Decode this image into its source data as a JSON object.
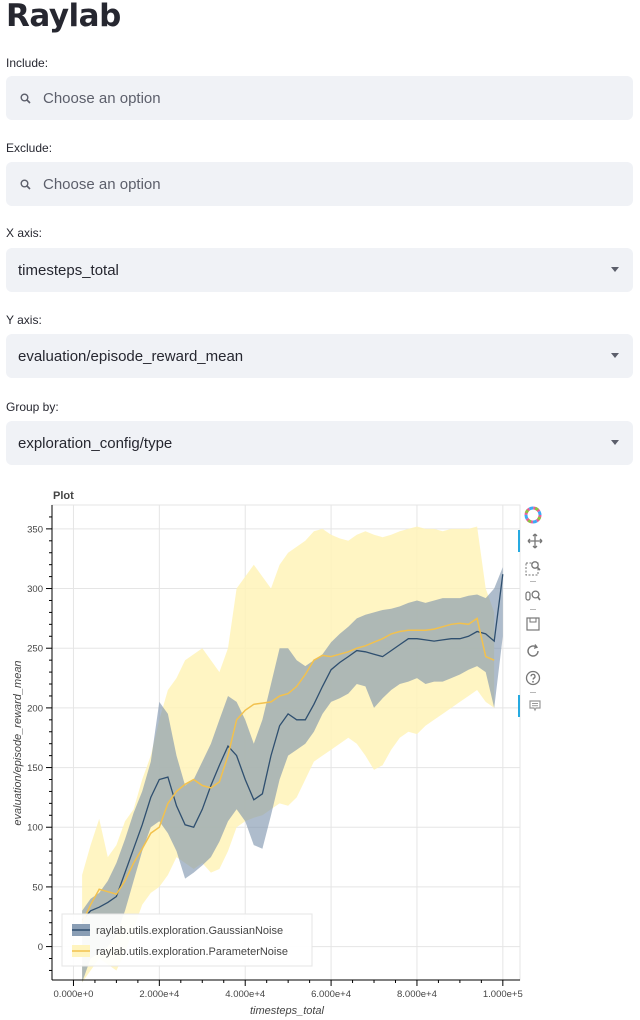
{
  "app": {
    "title": "Raylab"
  },
  "controls": {
    "include": {
      "label": "Include:",
      "placeholder": "Choose an option"
    },
    "exclude": {
      "label": "Exclude:",
      "placeholder": "Choose an option"
    },
    "x_axis": {
      "label": "X axis:",
      "value": "timesteps_total"
    },
    "y_axis": {
      "label": "Y axis:",
      "value": "evaluation/episode_reward_mean"
    },
    "group_by": {
      "label": "Group by:",
      "value": "exploration_config/type"
    }
  },
  "toolbar": {
    "tools": [
      "bokeh-logo-icon",
      "pan-icon",
      "box-zoom-icon",
      "wheel-zoom-icon",
      "save-icon",
      "reset-icon",
      "help-icon",
      "hover-icon"
    ]
  },
  "chart_data": {
    "type": "line",
    "title": "Plot",
    "xlabel": "timesteps_total",
    "ylabel": "evaluation/episode_reward_mean",
    "xlim": [
      -5000,
      104000
    ],
    "ylim": [
      -28,
      370
    ],
    "x_ticks": [
      0,
      20000,
      40000,
      60000,
      80000,
      100000
    ],
    "x_tick_labels": [
      "0.000e+0",
      "2.000e+4",
      "4.000e+4",
      "6.000e+4",
      "8.000e+4",
      "1.000e+5"
    ],
    "y_ticks": [
      0,
      50,
      100,
      150,
      200,
      250,
      300,
      350
    ],
    "y_tick_labels": [
      "0",
      "50",
      "100",
      "150",
      "200",
      "250",
      "300",
      "350"
    ],
    "grid": true,
    "legend_position": "bottom-left",
    "series": [
      {
        "name": "raylab.utils.exploration.GaussianNoise",
        "color": "#2f4f6f",
        "band_color": "#7d93ad",
        "x": [
          2000,
          4000,
          6000,
          8000,
          10000,
          12000,
          14000,
          16000,
          18000,
          20000,
          22000,
          24000,
          26000,
          28000,
          30000,
          32000,
          34000,
          36000,
          38000,
          40000,
          42000,
          44000,
          46000,
          48000,
          50000,
          52000,
          54000,
          56000,
          58000,
          60000,
          62000,
          64000,
          66000,
          68000,
          70000,
          72000,
          74000,
          76000,
          78000,
          80000,
          82000,
          84000,
          86000,
          88000,
          90000,
          92000,
          94000,
          96000,
          98000,
          100000
        ],
        "y": [
          22,
          30,
          33,
          37,
          42,
          62,
          82,
          102,
          125,
          140,
          142,
          118,
          102,
          100,
          115,
          135,
          152,
          168,
          160,
          140,
          123,
          128,
          160,
          185,
          195,
          190,
          190,
          203,
          218,
          232,
          238,
          243,
          248,
          247,
          245,
          243,
          248,
          253,
          258,
          258,
          257,
          256,
          257,
          258,
          258,
          260,
          264,
          262,
          256,
          312
        ],
        "lower": [
          -30,
          -10,
          -5,
          0,
          10,
          30,
          55,
          80,
          100,
          105,
          95,
          80,
          57,
          62,
          68,
          75,
          88,
          105,
          115,
          105,
          85,
          82,
          110,
          140,
          160,
          165,
          170,
          180,
          195,
          205,
          208,
          212,
          220,
          218,
          200,
          208,
          215,
          220,
          222,
          225,
          220,
          222,
          222,
          225,
          228,
          232,
          235,
          230,
          200,
          260
        ],
        "upper": [
          30,
          40,
          45,
          55,
          70,
          90,
          112,
          130,
          155,
          205,
          195,
          160,
          135,
          140,
          155,
          170,
          190,
          210,
          205,
          190,
          170,
          190,
          220,
          250,
          250,
          240,
          235,
          240,
          245,
          255,
          262,
          268,
          275,
          278,
          280,
          282,
          283,
          285,
          288,
          290,
          288,
          290,
          292,
          292,
          292,
          294,
          295,
          292,
          300,
          318
        ]
      },
      {
        "name": "raylab.utils.exploration.ParameterNoise",
        "color": "#f2c14e",
        "band_color": "#fff3b8",
        "x": [
          2000,
          4000,
          6000,
          8000,
          10000,
          12000,
          14000,
          16000,
          18000,
          20000,
          22000,
          24000,
          26000,
          28000,
          30000,
          32000,
          34000,
          36000,
          38000,
          40000,
          42000,
          44000,
          46000,
          48000,
          50000,
          52000,
          54000,
          56000,
          58000,
          60000,
          62000,
          64000,
          66000,
          68000,
          70000,
          72000,
          74000,
          76000,
          78000,
          80000,
          82000,
          84000,
          86000,
          88000,
          90000,
          92000,
          94000,
          96000,
          98000
        ],
        "y": [
          20,
          35,
          48,
          46,
          44,
          55,
          70,
          82,
          95,
          100,
          120,
          130,
          136,
          140,
          135,
          133,
          138,
          160,
          190,
          198,
          203,
          204,
          205,
          210,
          212,
          218,
          228,
          240,
          244,
          243,
          245,
          247,
          250,
          252,
          255,
          258,
          262,
          264,
          265,
          265,
          265,
          266,
          268,
          270,
          271,
          270,
          275,
          243,
          240
        ],
        "lower": [
          -30,
          -20,
          -10,
          -15,
          -20,
          -5,
          15,
          35,
          45,
          50,
          60,
          75,
          70,
          65,
          70,
          62,
          65,
          80,
          100,
          105,
          108,
          110,
          115,
          120,
          118,
          125,
          140,
          155,
          160,
          165,
          170,
          175,
          170,
          160,
          148,
          152,
          165,
          175,
          180,
          178,
          185,
          190,
          195,
          200,
          205,
          210,
          215,
          205,
          200
        ],
        "upper": [
          60,
          85,
          107,
          75,
          85,
          105,
          115,
          140,
          160,
          190,
          215,
          225,
          240,
          245,
          250,
          240,
          230,
          250,
          300,
          310,
          320,
          310,
          300,
          320,
          330,
          335,
          340,
          348,
          350,
          345,
          342,
          340,
          345,
          348,
          345,
          343,
          345,
          348,
          350,
          352,
          350,
          350,
          348,
          350,
          350,
          350,
          352,
          300,
          280
        ]
      }
    ]
  }
}
